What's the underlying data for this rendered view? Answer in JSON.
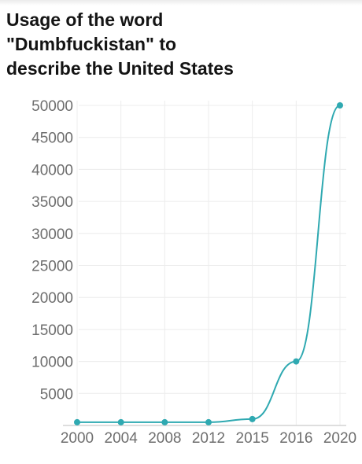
{
  "chart_data": {
    "type": "line",
    "title": "Usage of the word\n\"Dumbfuckistan\" to\ndescribe the United States",
    "xlabel": "",
    "ylabel": "",
    "categories": [
      "2000",
      "2004",
      "2008",
      "2012",
      "2015",
      "2016",
      "2020"
    ],
    "series": [
      {
        "values": [
          500,
          500,
          500,
          500,
          1000,
          10000,
          50000
        ]
      }
    ],
    "ylim": [
      0,
      50000
    ],
    "y_ticks": [
      5000,
      10000,
      15000,
      20000,
      25000,
      30000,
      35000,
      40000,
      45000,
      50000
    ],
    "grid": true,
    "legend": "none",
    "colors": {
      "line": "#2fa9b1",
      "grid": "#ececec",
      "axis": "#d4d4d4",
      "text": "#6e6e6e",
      "title": "#141414"
    }
  }
}
